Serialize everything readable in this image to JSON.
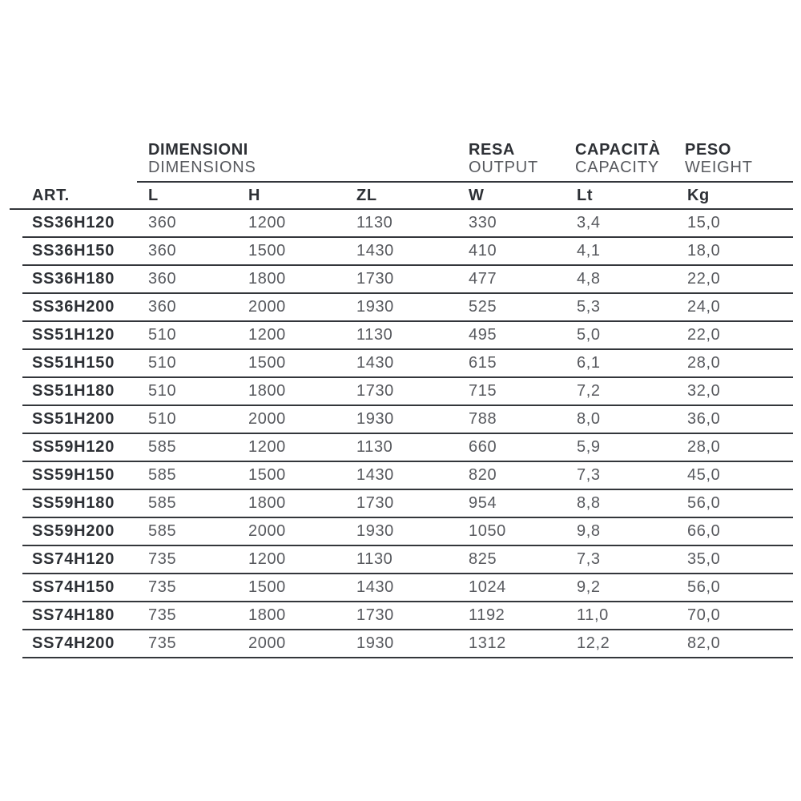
{
  "table": {
    "groups": [
      {
        "it": "DIMENSIONI",
        "en": "DIMENSIONS"
      },
      {
        "it": "RESA",
        "en": "OUTPUT"
      },
      {
        "it": "CAPACITÀ",
        "en": "CAPACITY"
      },
      {
        "it": "PESO",
        "en": "WEIGHT"
      }
    ],
    "columns": [
      "ART.",
      "L",
      "H",
      "ZL",
      "W",
      "Lt",
      "Kg"
    ],
    "rows": [
      [
        "SS36H120",
        "360",
        "1200",
        "1130",
        "330",
        "3,4",
        "15,0"
      ],
      [
        "SS36H150",
        "360",
        "1500",
        "1430",
        "410",
        "4,1",
        "18,0"
      ],
      [
        "SS36H180",
        "360",
        "1800",
        "1730",
        "477",
        "4,8",
        "22,0"
      ],
      [
        "SS36H200",
        "360",
        "2000",
        "1930",
        "525",
        "5,3",
        "24,0"
      ],
      [
        "SS51H120",
        "510",
        "1200",
        "1130",
        "495",
        "5,0",
        "22,0"
      ],
      [
        "SS51H150",
        "510",
        "1500",
        "1430",
        "615",
        "6,1",
        "28,0"
      ],
      [
        "SS51H180",
        "510",
        "1800",
        "1730",
        "715",
        "7,2",
        "32,0"
      ],
      [
        "SS51H200",
        "510",
        "2000",
        "1930",
        "788",
        "8,0",
        "36,0"
      ],
      [
        "SS59H120",
        "585",
        "1200",
        "1130",
        "660",
        "5,9",
        "28,0"
      ],
      [
        "SS59H150",
        "585",
        "1500",
        "1430",
        "820",
        "7,3",
        "45,0"
      ],
      [
        "SS59H180",
        "585",
        "1800",
        "1730",
        "954",
        "8,8",
        "56,0"
      ],
      [
        "SS59H200",
        "585",
        "2000",
        "1930",
        "1050",
        "9,8",
        "66,0"
      ],
      [
        "SS74H120",
        "735",
        "1200",
        "1130",
        "825",
        "7,3",
        "35,0"
      ],
      [
        "SS74H150",
        "735",
        "1500",
        "1430",
        "1024",
        "9,2",
        "56,0"
      ],
      [
        "SS74H180",
        "735",
        "1800",
        "1730",
        "1192",
        "11,0",
        "70,0"
      ],
      [
        "SS74H200",
        "735",
        "2000",
        "1930",
        "1312",
        "12,2",
        "82,0"
      ]
    ]
  },
  "colors": {
    "dark_text": "#2d3035",
    "gray_text": "#57595e",
    "line": "#33363b"
  }
}
